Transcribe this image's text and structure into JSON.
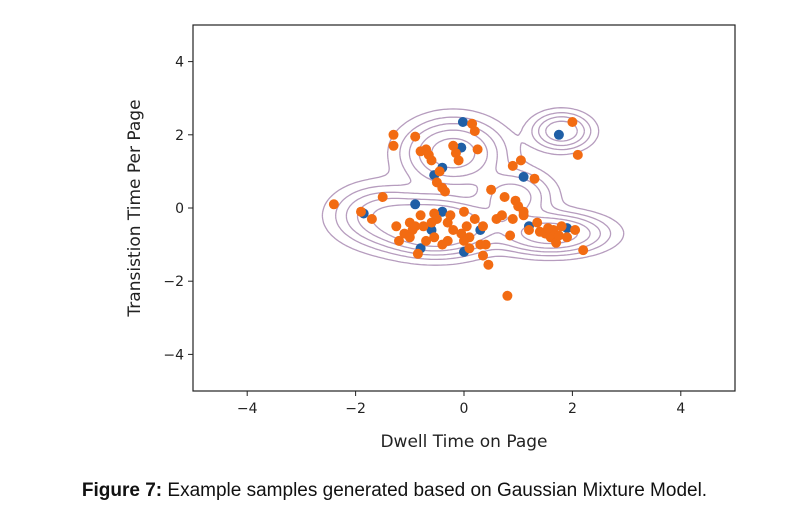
{
  "caption": {
    "label": "Figure 7:",
    "text": " Example samples generated based on Gaussian Mixture Model."
  },
  "chart_data": {
    "type": "scatter",
    "xlabel": "Dwell Time on Page",
    "ylabel": "Transistion Time Per Page",
    "xlim": [
      -5,
      5
    ],
    "ylim": [
      -5,
      5
    ],
    "xticks": [
      -4,
      -2,
      0,
      2,
      4
    ],
    "yticks": [
      -4,
      -2,
      0,
      2,
      4
    ],
    "x_tick_labels": [
      "−4",
      "−2",
      "0",
      "2",
      "4"
    ],
    "y_tick_labels": [
      "−4",
      "−2",
      "0",
      "2",
      "4"
    ],
    "grid": false,
    "legend": "none",
    "colors": {
      "series_1": "#1f5fa6",
      "series_2": "#f26b12",
      "contour": "#a98bb3"
    },
    "contours": {
      "mixture_components": [
        {
          "mean": [
            -0.5,
            -0.5
          ],
          "sigma": [
            0.55,
            0.4
          ],
          "weight": 1.0
        },
        {
          "mean": [
            -0.2,
            1.5
          ],
          "sigma": [
            0.5,
            0.5
          ],
          "weight": 0.55
        },
        {
          "mean": [
            1.8,
            2.1
          ],
          "sigma": [
            0.3,
            0.28
          ],
          "weight": 0.4
        },
        {
          "mean": [
            1.6,
            -0.7
          ],
          "sigma": [
            0.55,
            0.3
          ],
          "weight": 0.6
        },
        {
          "mean": [
            0.9,
            0.3
          ],
          "sigma": [
            0.4,
            0.4
          ],
          "weight": 0.35
        },
        {
          "mean": [
            -1.5,
            -0.2
          ],
          "sigma": [
            0.5,
            0.45
          ],
          "weight": 0.35
        }
      ],
      "levels": [
        0.03,
        0.08,
        0.15,
        0.25,
        0.4
      ]
    },
    "series": [
      {
        "points": [
          [
            -0.02,
            2.35
          ],
          [
            -0.05,
            1.65
          ],
          [
            -0.4,
            1.1
          ],
          [
            -0.55,
            0.9
          ],
          [
            1.1,
            0.85
          ],
          [
            1.75,
            2.0
          ],
          [
            -0.9,
            0.1
          ],
          [
            -1.85,
            -0.15
          ],
          [
            -0.4,
            -0.1
          ],
          [
            0.3,
            -0.6
          ],
          [
            -0.8,
            -1.1
          ],
          [
            0.0,
            -1.2
          ],
          [
            1.9,
            -0.55
          ],
          [
            1.2,
            -0.5
          ],
          [
            -0.6,
            -0.6
          ]
        ]
      },
      {
        "points": [
          [
            -2.4,
            0.1
          ],
          [
            -1.9,
            -0.1
          ],
          [
            -1.7,
            -0.3
          ],
          [
            -1.5,
            0.3
          ],
          [
            -1.3,
            2.0
          ],
          [
            -1.3,
            1.7
          ],
          [
            -1.2,
            -0.9
          ],
          [
            -1.1,
            -0.7
          ],
          [
            -1.0,
            -0.4
          ],
          [
            -0.95,
            -0.6
          ],
          [
            -0.9,
            1.95
          ],
          [
            -0.85,
            -1.25
          ],
          [
            -0.8,
            -0.2
          ],
          [
            -0.75,
            -0.5
          ],
          [
            -0.7,
            1.6
          ],
          [
            -0.65,
            1.45
          ],
          [
            -0.6,
            1.3
          ],
          [
            -0.55,
            -0.8
          ],
          [
            -0.5,
            -0.3
          ],
          [
            -0.45,
            1.0
          ],
          [
            -0.4,
            0.55
          ],
          [
            -0.35,
            0.45
          ],
          [
            -0.3,
            -0.9
          ],
          [
            -0.25,
            -0.2
          ],
          [
            -0.2,
            1.7
          ],
          [
            -0.15,
            1.5
          ],
          [
            -0.1,
            1.3
          ],
          [
            -0.05,
            -0.7
          ],
          [
            0.0,
            -0.1
          ],
          [
            0.05,
            -0.5
          ],
          [
            0.1,
            -0.8
          ],
          [
            0.15,
            2.3
          ],
          [
            0.2,
            2.1
          ],
          [
            0.25,
            1.6
          ],
          [
            0.3,
            -1.0
          ],
          [
            0.35,
            -1.3
          ],
          [
            0.4,
            -1.0
          ],
          [
            0.45,
            -1.55
          ],
          [
            0.5,
            0.5
          ],
          [
            0.6,
            -0.3
          ],
          [
            0.7,
            -0.2
          ],
          [
            0.75,
            0.3
          ],
          [
            0.8,
            -2.4
          ],
          [
            0.85,
            -0.75
          ],
          [
            0.9,
            1.15
          ],
          [
            0.95,
            0.2
          ],
          [
            1.0,
            0.05
          ],
          [
            1.05,
            1.3
          ],
          [
            1.1,
            -0.2
          ],
          [
            1.2,
            -0.6
          ],
          [
            1.3,
            0.8
          ],
          [
            1.35,
            -0.4
          ],
          [
            1.4,
            -0.65
          ],
          [
            1.5,
            -0.7
          ],
          [
            1.6,
            -0.8
          ],
          [
            1.65,
            -0.6
          ],
          [
            1.7,
            -0.95
          ],
          [
            1.8,
            -0.5
          ],
          [
            1.9,
            -0.8
          ],
          [
            2.0,
            2.35
          ],
          [
            2.05,
            -0.6
          ],
          [
            2.1,
            1.45
          ],
          [
            2.2,
            -1.15
          ],
          [
            -1.0,
            -0.8
          ],
          [
            -0.6,
            -0.4
          ],
          [
            -0.2,
            -0.6
          ],
          [
            0.2,
            -0.3
          ],
          [
            -0.8,
            1.55
          ],
          [
            -0.5,
            0.7
          ],
          [
            0.0,
            -0.9
          ],
          [
            -0.7,
            -0.9
          ],
          [
            -0.3,
            -0.4
          ],
          [
            0.1,
            -1.1
          ],
          [
            -0.9,
            -0.5
          ],
          [
            -0.4,
            -1.0
          ],
          [
            1.1,
            -0.1
          ],
          [
            1.55,
            -0.55
          ],
          [
            1.75,
            -0.75
          ],
          [
            -1.25,
            -0.5
          ],
          [
            -0.55,
            -0.15
          ],
          [
            0.35,
            -0.5
          ],
          [
            0.9,
            -0.3
          ]
        ]
      }
    ]
  }
}
